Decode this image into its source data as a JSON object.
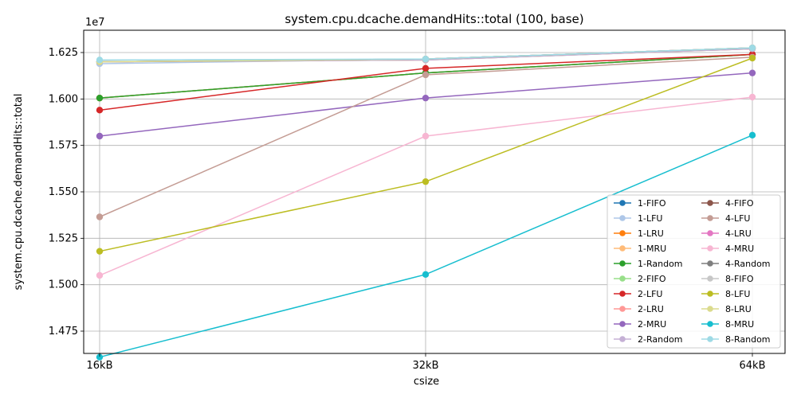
{
  "chart_data": {
    "type": "line",
    "title": "system.cpu.dcache.demandHits::total (100, base)",
    "xlabel": "csize",
    "ylabel": "system.cpu.dcache.demandHits::total",
    "y_multiplier_label": "1e7",
    "categories": [
      "16kB",
      "32kB",
      "64kB"
    ],
    "ylim": [
      14.63,
      16.37
    ],
    "yticks": [
      14.75,
      15.0,
      15.25,
      15.5,
      15.75,
      16.0,
      16.25
    ],
    "ytick_labels": [
      "1.475",
      "1.500",
      "1.525",
      "1.550",
      "1.575",
      "1.600",
      "1.625"
    ],
    "grid": true,
    "legend_position": "lower-right",
    "legend_columns": 2,
    "series": [
      {
        "name": "1-FIFO",
        "color": "#1f77b4",
        "values": [
          16.005,
          16.14,
          16.24
        ]
      },
      {
        "name": "1-LFU",
        "color": "#aec7e8",
        "values": [
          16.19,
          16.215,
          16.275
        ]
      },
      {
        "name": "1-LRU",
        "color": "#ff7f0e",
        "values": [
          16.005,
          16.14,
          16.24
        ]
      },
      {
        "name": "1-MRU",
        "color": "#ffbb78",
        "values": [
          16.005,
          16.14,
          16.24
        ]
      },
      {
        "name": "1-Random",
        "color": "#2ca02c",
        "values": [
          16.005,
          16.14,
          16.24
        ]
      },
      {
        "name": "2-FIFO",
        "color": "#98df8a",
        "values": [
          16.2,
          16.21,
          16.27
        ]
      },
      {
        "name": "2-LFU",
        "color": "#d62728",
        "values": [
          15.94,
          16.165,
          16.24
        ]
      },
      {
        "name": "2-LRU",
        "color": "#ff9896",
        "values": [
          16.2,
          16.21,
          16.27
        ]
      },
      {
        "name": "2-MRU",
        "color": "#9467bd",
        "values": [
          15.8,
          16.005,
          16.14
        ]
      },
      {
        "name": "2-Random",
        "color": "#c5b0d5",
        "values": [
          16.2,
          16.21,
          16.27
        ]
      },
      {
        "name": "4-FIFO",
        "color": "#8c564b",
        "values": [
          16.2,
          16.215,
          16.275
        ]
      },
      {
        "name": "4-LFU",
        "color": "#c49c94",
        "values": [
          15.365,
          16.13,
          16.225
        ]
      },
      {
        "name": "4-LRU",
        "color": "#e377c2",
        "values": [
          16.2,
          16.215,
          16.275
        ]
      },
      {
        "name": "4-MRU",
        "color": "#f7b6d2",
        "values": [
          15.05,
          15.8,
          16.01
        ]
      },
      {
        "name": "4-Random",
        "color": "#7f7f7f",
        "values": [
          16.2,
          16.215,
          16.275
        ]
      },
      {
        "name": "8-FIFO",
        "color": "#c7c7c7",
        "values": [
          16.2,
          16.215,
          16.275
        ]
      },
      {
        "name": "8-LFU",
        "color": "#bcbd22",
        "values": [
          15.18,
          15.555,
          16.22
        ]
      },
      {
        "name": "8-LRU",
        "color": "#dbdb8d",
        "values": [
          16.2,
          16.215,
          16.275
        ]
      },
      {
        "name": "8-MRU",
        "color": "#17becf",
        "values": [
          14.61,
          15.055,
          15.805
        ]
      },
      {
        "name": "8-Random",
        "color": "#9edae5",
        "values": [
          16.21,
          16.215,
          16.275
        ]
      }
    ]
  }
}
